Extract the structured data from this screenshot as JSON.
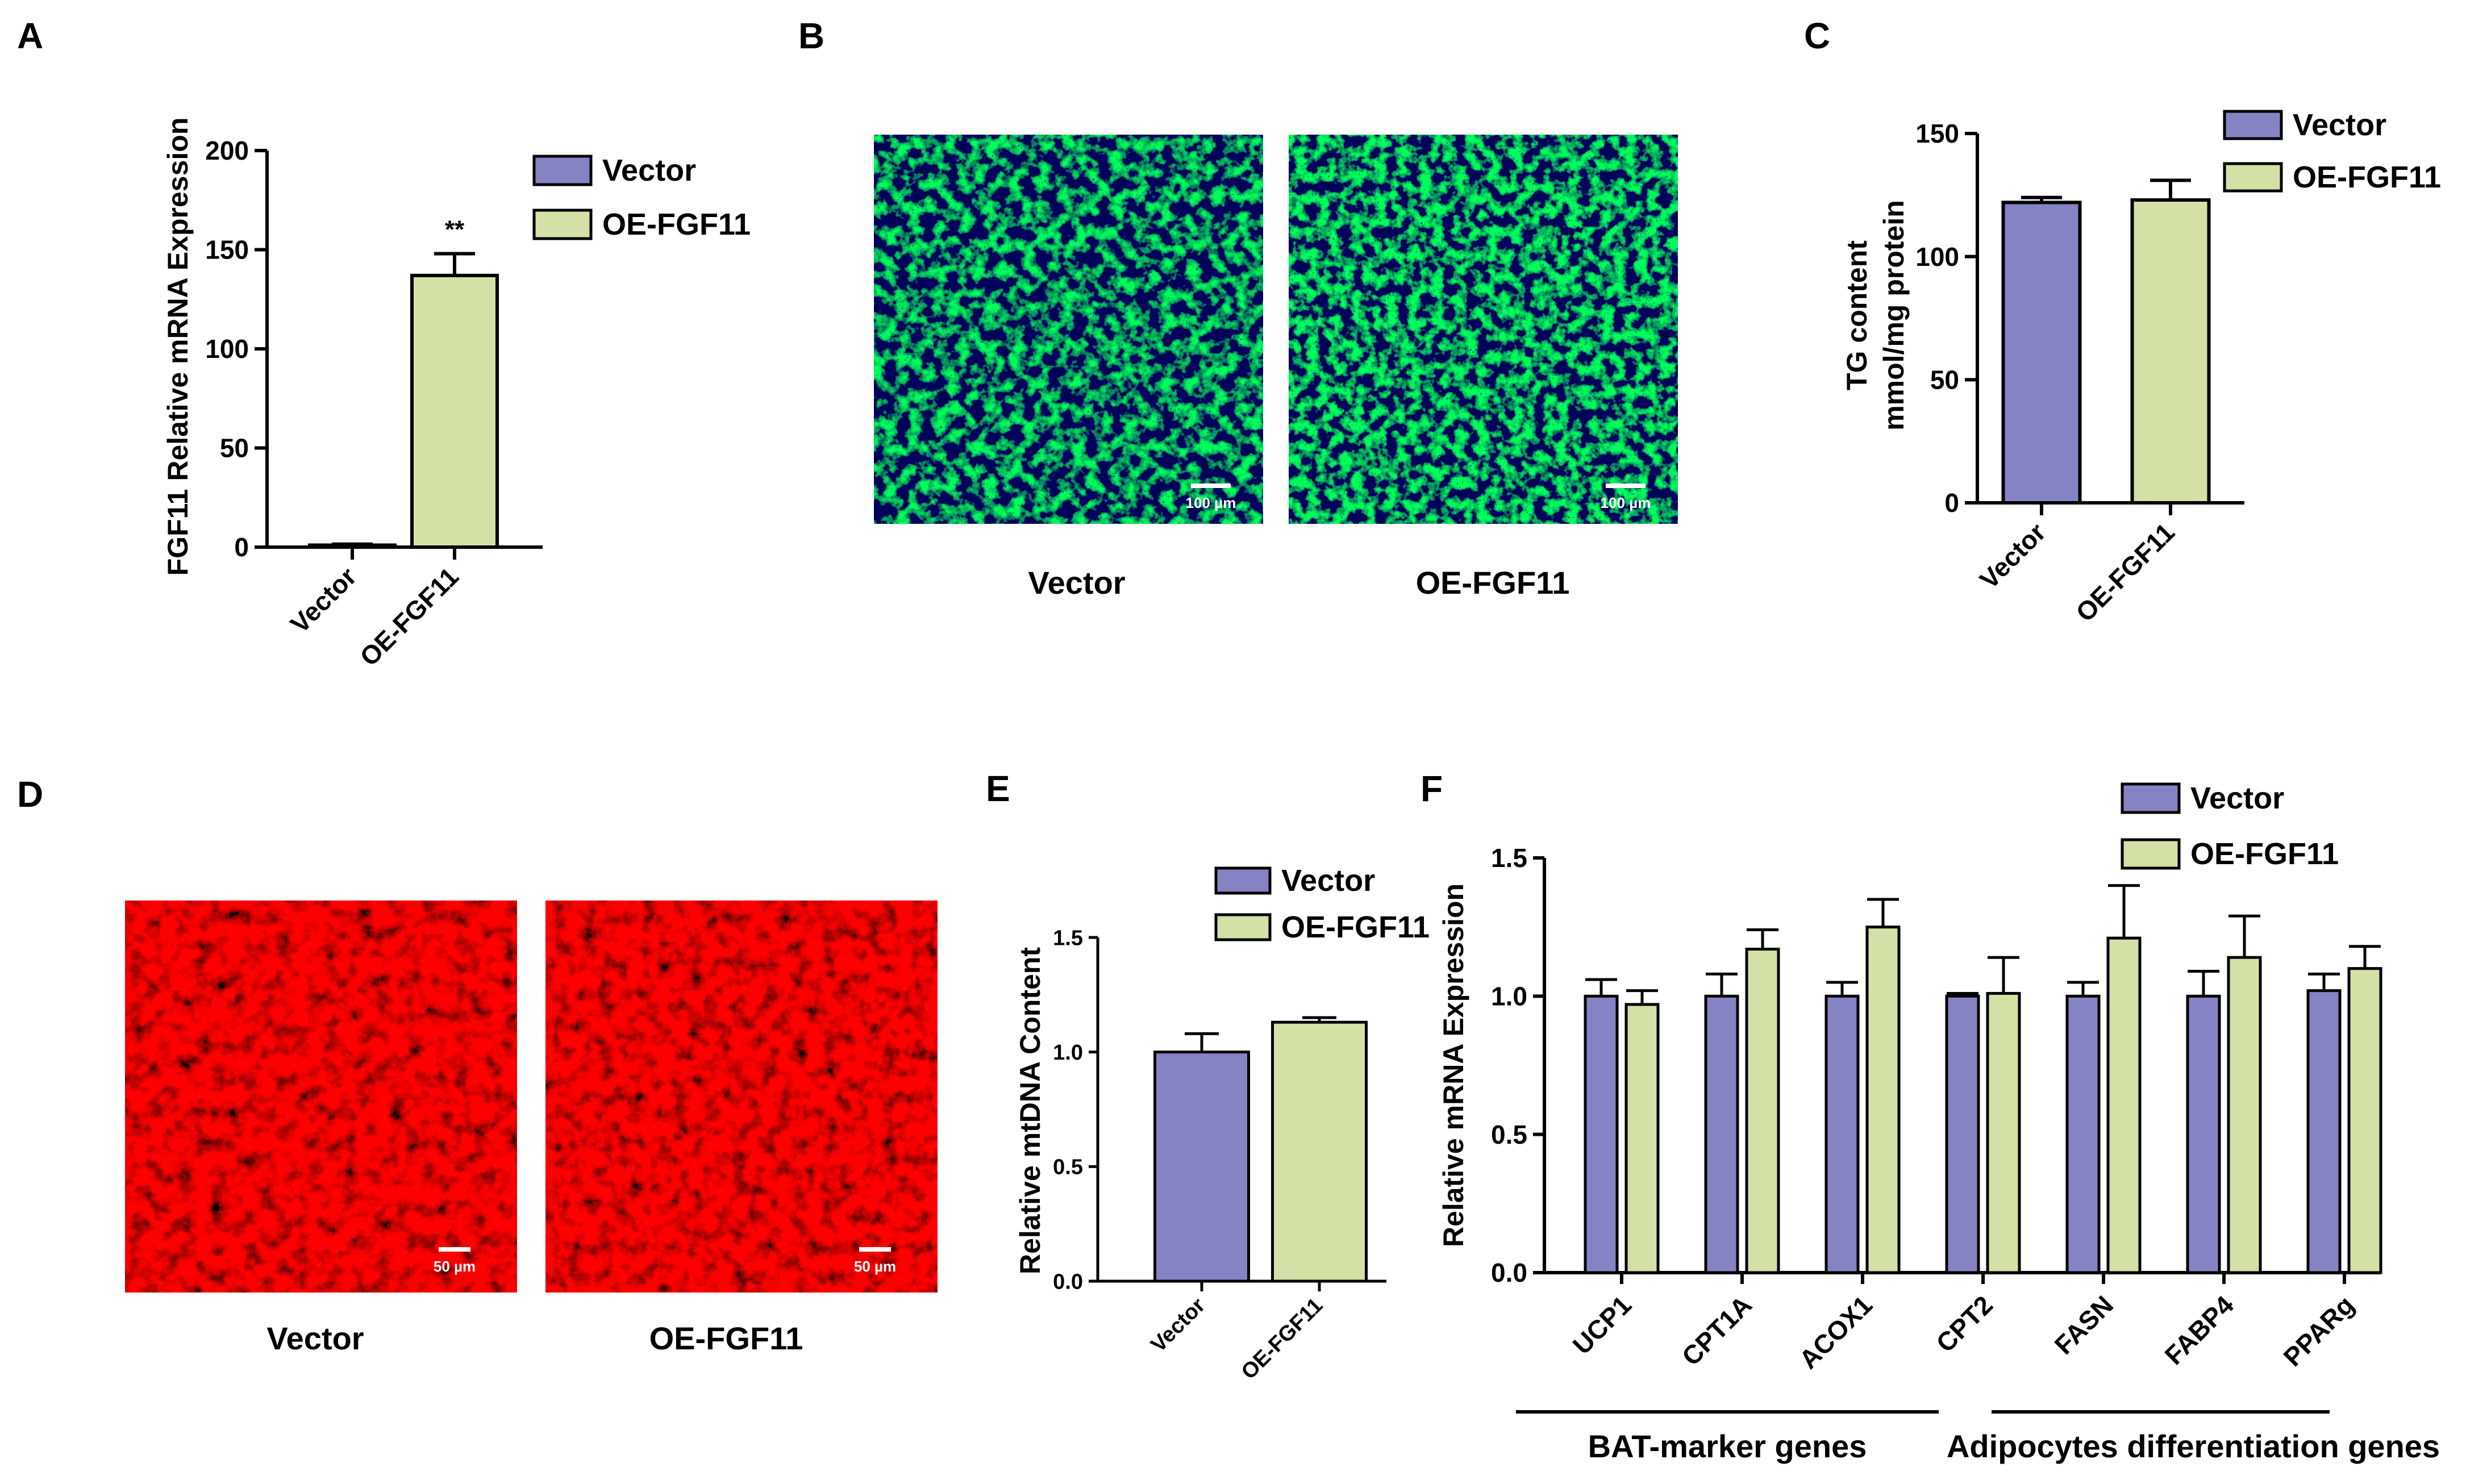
{
  "colors": {
    "vector": "#8583c4",
    "oe": "#d3e0a6",
    "stroke": "#000000"
  },
  "panels": {
    "A": {
      "letter": "A"
    },
    "B": {
      "letter": "B",
      "captions": [
        "Vector",
        "OE-FGF11"
      ],
      "scale_bar": "100 µm"
    },
    "C": {
      "letter": "C"
    },
    "D": {
      "letter": "D",
      "captions": [
        "Vector",
        "OE-FGF11"
      ],
      "scale_bar": "50 µm"
    },
    "E": {
      "letter": "E"
    },
    "F": {
      "letter": "F"
    }
  },
  "chart_data": [
    {
      "panel": "A",
      "type": "bar",
      "categories": [
        "Vector",
        "OE-FGF11"
      ],
      "values": [
        1,
        137
      ],
      "errors": [
        0.5,
        11
      ],
      "ylabel": "FGF11 Relative mRNA Expression",
      "ylim": [
        0,
        200
      ],
      "yticks": [
        "0",
        "50",
        "100",
        "150",
        "200"
      ],
      "annotations": [
        "**"
      ],
      "legend": [
        "Vector",
        "OE-FGF11"
      ],
      "legend_position": "top-right",
      "grid": false
    },
    {
      "panel": "C",
      "type": "bar",
      "categories": [
        "Vector",
        "OE-FGF11"
      ],
      "values": [
        122,
        123
      ],
      "errors": [
        2,
        8
      ],
      "ylabel": [
        "TG content",
        "mmol/mg protein"
      ],
      "ylim": [
        0,
        150
      ],
      "yticks": [
        "0",
        "50",
        "100",
        "150"
      ],
      "legend": [
        "Vector",
        "OE-FGF11"
      ],
      "legend_position": "top-right",
      "grid": false
    },
    {
      "panel": "E",
      "type": "bar",
      "categories": [
        "Vector",
        "OE-FGF11"
      ],
      "values": [
        1.0,
        1.13
      ],
      "errors": [
        0.08,
        0.02
      ],
      "ylabel": "Relative mtDNA Content",
      "ylim": [
        0,
        1.5
      ],
      "yticks": [
        "0.0",
        "0.5",
        "1.0",
        "1.5"
      ],
      "legend": [
        "Vector",
        "OE-FGF11"
      ],
      "legend_position": "top",
      "grid": false
    },
    {
      "panel": "F",
      "type": "bar",
      "categories": [
        "UCP1",
        "CPT1A",
        "ACOX1",
        "CPT2",
        "FASN",
        "FABP4",
        "PPARg"
      ],
      "series": [
        {
          "name": "Vector",
          "values": [
            1.0,
            1.0,
            1.0,
            1.0,
            1.0,
            1.0,
            1.02
          ],
          "errors": [
            0.06,
            0.08,
            0.05,
            0.01,
            0.05,
            0.09,
            0.06
          ]
        },
        {
          "name": "OE-FGF11",
          "values": [
            0.97,
            1.17,
            1.25,
            1.01,
            1.21,
            1.14,
            1.1
          ],
          "errors": [
            0.05,
            0.07,
            0.1,
            0.13,
            0.19,
            0.15,
            0.08
          ]
        }
      ],
      "ylabel": "Relative mRNA Expression",
      "ylim": [
        0,
        1.5
      ],
      "yticks": [
        "0.0",
        "0.5",
        "1.0",
        "1.5"
      ],
      "groups": [
        "BAT-marker genes",
        "Adipocytes differentiation genes"
      ],
      "legend_position": "top-right",
      "grid": false
    }
  ]
}
